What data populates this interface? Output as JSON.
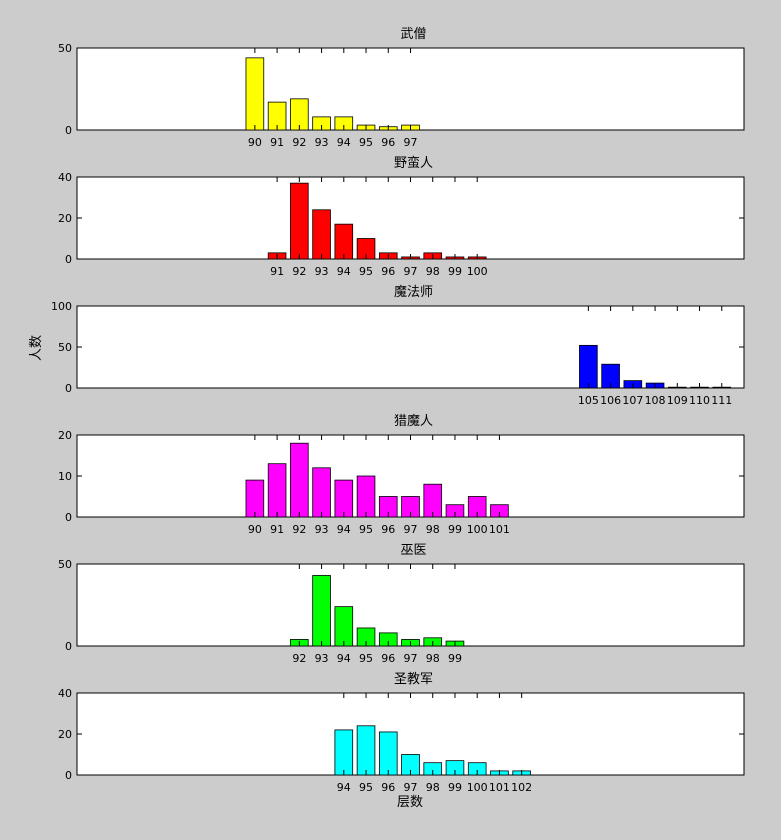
{
  "figure": {
    "ylabel": "人数",
    "xlabel": "层数",
    "background": "#cccccc"
  },
  "chart_data": [
    {
      "type": "bar",
      "title": "武僧",
      "color": "#ffff00",
      "xlim": [
        82,
        112
      ],
      "ylim": [
        0,
        50
      ],
      "yticks": [
        0,
        50
      ],
      "categories": [
        "90",
        "91",
        "92",
        "93",
        "94",
        "95",
        "96",
        "97"
      ],
      "x": [
        90,
        91,
        92,
        93,
        94,
        95,
        96,
        97
      ],
      "values": [
        44,
        17,
        19,
        8,
        8,
        3,
        2,
        3
      ]
    },
    {
      "type": "bar",
      "title": "野蛮人",
      "color": "#ff0000",
      "xlim": [
        82,
        112
      ],
      "ylim": [
        0,
        40
      ],
      "yticks": [
        0,
        20,
        40
      ],
      "categories": [
        "91",
        "92",
        "93",
        "94",
        "95",
        "96",
        "97",
        "98",
        "99",
        "100"
      ],
      "x": [
        91,
        92,
        93,
        94,
        95,
        96,
        97,
        98,
        99,
        100
      ],
      "values": [
        3,
        37,
        24,
        17,
        10,
        3,
        1,
        3,
        1,
        1
      ]
    },
    {
      "type": "bar",
      "title": "魔法师",
      "color": "#0000ff",
      "xlim": [
        82,
        112
      ],
      "ylim": [
        0,
        100
      ],
      "yticks": [
        0,
        50,
        100
      ],
      "categories": [
        "105",
        "106",
        "107",
        "108",
        "109",
        "110",
        "111"
      ],
      "x": [
        105,
        106,
        107,
        108,
        109,
        110,
        111
      ],
      "values": [
        52,
        29,
        9,
        6,
        1,
        1,
        1
      ]
    },
    {
      "type": "bar",
      "title": "猎魔人",
      "color": "#ff00ff",
      "xlim": [
        82,
        112
      ],
      "ylim": [
        0,
        20
      ],
      "yticks": [
        0,
        10,
        20
      ],
      "categories": [
        "90",
        "91",
        "92",
        "93",
        "94",
        "95",
        "96",
        "97",
        "98",
        "99",
        "100",
        "101"
      ],
      "x": [
        90,
        91,
        92,
        93,
        94,
        95,
        96,
        97,
        98,
        99,
        100,
        101
      ],
      "values": [
        9,
        13,
        18,
        12,
        9,
        10,
        5,
        5,
        8,
        3,
        5,
        3
      ]
    },
    {
      "type": "bar",
      "title": "巫医",
      "color": "#00ff00",
      "xlim": [
        82,
        112
      ],
      "ylim": [
        0,
        50
      ],
      "yticks": [
        0,
        50
      ],
      "categories": [
        "92",
        "93",
        "94",
        "95",
        "96",
        "97",
        "98",
        "99"
      ],
      "x": [
        92,
        93,
        94,
        95,
        96,
        97,
        98,
        99
      ],
      "values": [
        4,
        43,
        24,
        11,
        8,
        4,
        5,
        3
      ]
    },
    {
      "type": "bar",
      "title": "圣教军",
      "color": "#00ffff",
      "xlim": [
        82,
        112
      ],
      "ylim": [
        0,
        40
      ],
      "yticks": [
        0,
        20,
        40
      ],
      "categories": [
        "94",
        "95",
        "96",
        "97",
        "98",
        "99",
        "100",
        "101",
        "102"
      ],
      "x": [
        94,
        95,
        96,
        97,
        98,
        99,
        100,
        101,
        102
      ],
      "values": [
        22,
        24,
        21,
        10,
        6,
        7,
        6,
        2,
        2
      ]
    }
  ]
}
